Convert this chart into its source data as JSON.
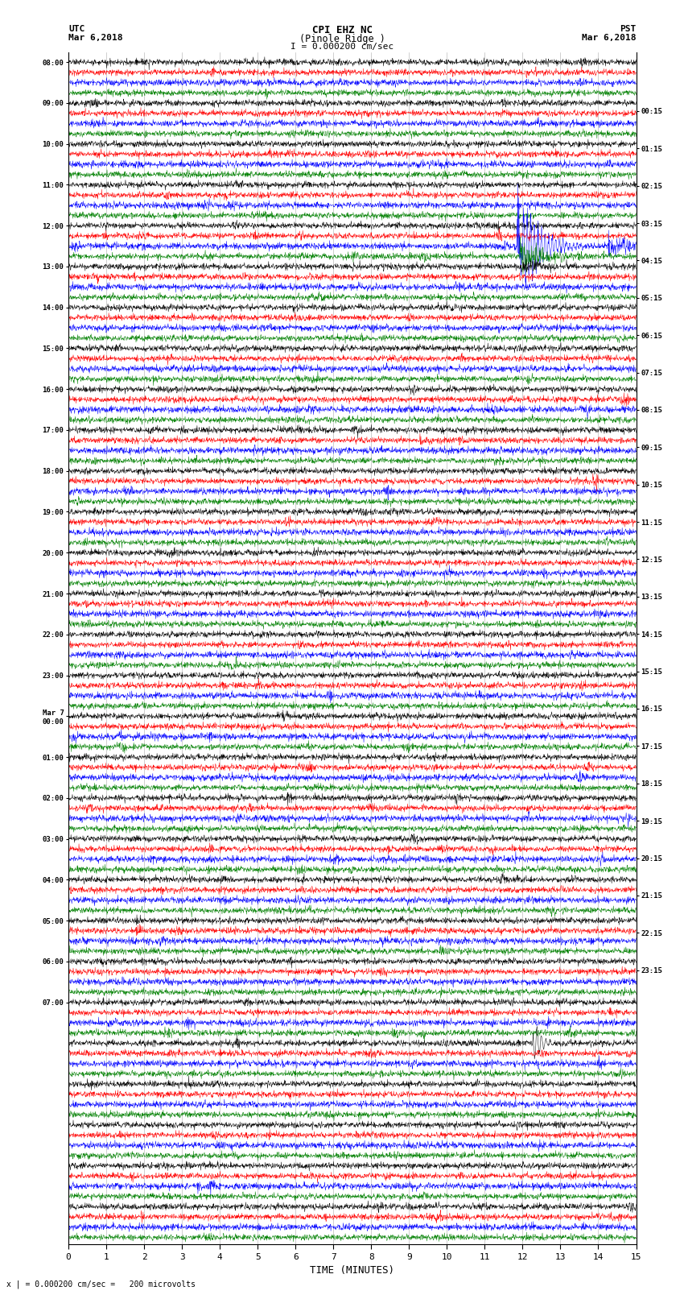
{
  "title_line1": "CPI EHZ NC",
  "title_line2": "(Pinole Ridge )",
  "scale_text": "I = 0.000200 cm/sec",
  "left_label_line1": "UTC",
  "left_label_line2": "Mar 6,2018",
  "right_label_line1": "PST",
  "right_label_line2": "Mar 6,2018",
  "bottom_label": "TIME (MINUTES)",
  "footer_text": "x | = 0.000200 cm/sec =   200 microvolts",
  "xlabel_ticks": [
    0,
    1,
    2,
    3,
    4,
    5,
    6,
    7,
    8,
    9,
    10,
    11,
    12,
    13,
    14,
    15
  ],
  "utc_times": [
    "08:00",
    "",
    "",
    "",
    "09:00",
    "",
    "",
    "",
    "10:00",
    "",
    "",
    "",
    "11:00",
    "",
    "",
    "",
    "12:00",
    "",
    "",
    "",
    "13:00",
    "",
    "",
    "",
    "14:00",
    "",
    "",
    "",
    "15:00",
    "",
    "",
    "",
    "16:00",
    "",
    "",
    "",
    "17:00",
    "",
    "",
    "",
    "18:00",
    "",
    "",
    "",
    "19:00",
    "",
    "",
    "",
    "20:00",
    "",
    "",
    "",
    "21:00",
    "",
    "",
    "",
    "22:00",
    "",
    "",
    "",
    "23:00",
    "",
    "",
    "",
    "Mar 7\n00:00",
    "",
    "",
    "",
    "01:00",
    "",
    "",
    "",
    "02:00",
    "",
    "",
    "",
    "03:00",
    "",
    "",
    "",
    "04:00",
    "",
    "",
    "",
    "05:00",
    "",
    "",
    "",
    "06:00",
    "",
    "",
    "",
    "07:00",
    "",
    ""
  ],
  "pst_times": [
    "00:15",
    "",
    "",
    "",
    "01:15",
    "",
    "",
    "",
    "02:15",
    "",
    "",
    "",
    "03:15",
    "",
    "",
    "",
    "04:15",
    "",
    "",
    "",
    "05:15",
    "",
    "",
    "",
    "06:15",
    "",
    "",
    "",
    "07:15",
    "",
    "",
    "",
    "08:15",
    "",
    "",
    "",
    "09:15",
    "",
    "",
    "",
    "10:15",
    "",
    "",
    "",
    "11:15",
    "",
    "",
    "",
    "12:15",
    "",
    "",
    "",
    "13:15",
    "",
    "",
    "",
    "14:15",
    "",
    "",
    "",
    "15:15",
    "",
    "",
    "",
    "16:15",
    "",
    "",
    "",
    "17:15",
    "",
    "",
    "",
    "18:15",
    "",
    "",
    "",
    "19:15",
    "",
    "",
    "",
    "20:15",
    "",
    "",
    "",
    "21:15",
    "",
    "",
    "",
    "22:15",
    "",
    "",
    "",
    "23:15",
    "",
    ""
  ],
  "n_rows": 116,
  "row_colors_pattern": [
    "black",
    "red",
    "blue",
    "green"
  ],
  "bg_color": "white",
  "grid_color": "#888888",
  "seed": 42,
  "eq_row_blue": 18,
  "eq_row_blue2": 19,
  "eq_row_blue3": 20,
  "eq_row_red2": 96,
  "eq_time_min": 12.0,
  "eq2_time_min": 12.35
}
